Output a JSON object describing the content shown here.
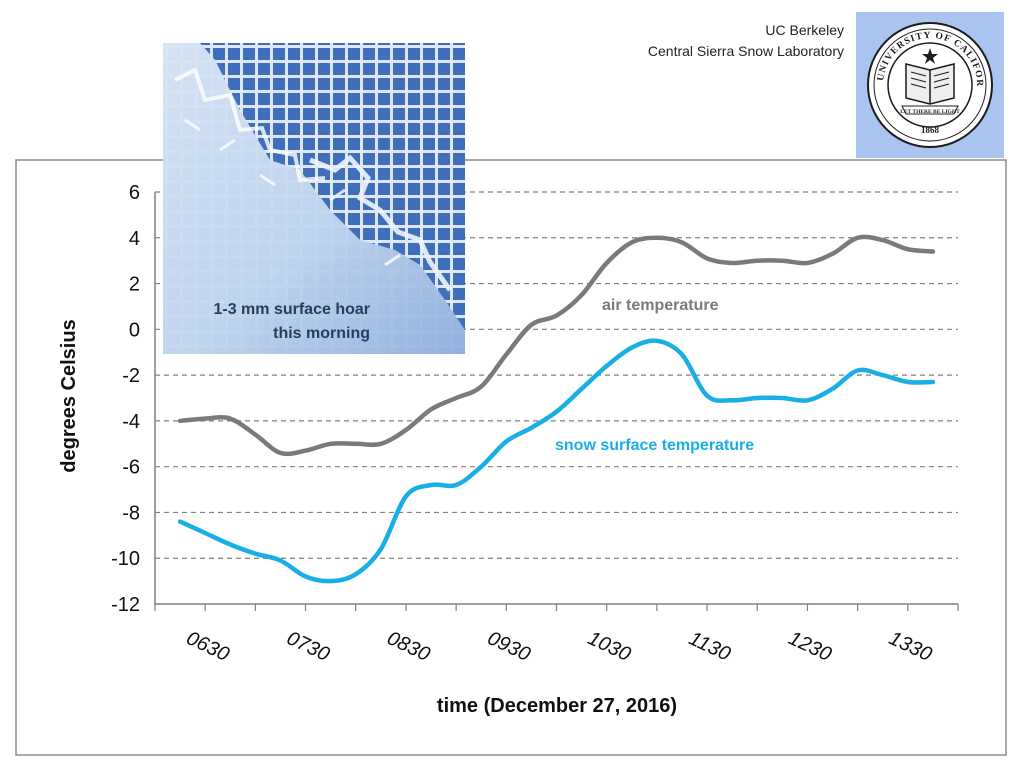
{
  "header": {
    "org_line1": "UC Berkeley",
    "org_line2": "Central Sierra Snow Laboratory",
    "seal_text": "THE UNIVERSITY OF CALIFORNIA",
    "seal_motto": "LET THERE BE LIGHT",
    "seal_year": "1868"
  },
  "photo": {
    "caption_line1": "1-3 mm surface hoar",
    "caption_line2": "this morning"
  },
  "chart_data": {
    "type": "line",
    "title": "",
    "xlabel": "time (December 27, 2016)",
    "ylabel": "degrees Celsius",
    "ylim": [
      -12,
      6
    ],
    "yticks": [
      6,
      4,
      2,
      0,
      -2,
      -4,
      -6,
      -8,
      -10,
      -12
    ],
    "ytick_labels": [
      "6",
      "4",
      "2",
      "0",
      "-2",
      "-4",
      "-6",
      "-8",
      "-10",
      "-12"
    ],
    "xlim": [
      6.0,
      14.0
    ],
    "xticks": [
      "0630",
      "0730",
      "0830",
      "0930",
      "1030",
      "1130",
      "1230",
      "1330"
    ],
    "grid": "horizontal dashed",
    "series": [
      {
        "name": "air temperature",
        "color": "#7a7a7a",
        "x": [
          "06:15",
          "06:30",
          "06:45",
          "07:00",
          "07:15",
          "07:30",
          "07:45",
          "08:00",
          "08:15",
          "08:30",
          "08:45",
          "09:00",
          "09:15",
          "09:30",
          "09:45",
          "10:00",
          "10:15",
          "10:30",
          "10:45",
          "11:00",
          "11:15",
          "11:30",
          "11:45",
          "12:00",
          "12:15",
          "12:30",
          "12:45",
          "13:00",
          "13:15",
          "13:30",
          "13:45"
        ],
        "values": [
          -4.0,
          -3.9,
          -3.9,
          -4.6,
          -5.4,
          -5.3,
          -5.0,
          -5.0,
          -5.0,
          -4.4,
          -3.5,
          -3.0,
          -2.5,
          -1.1,
          0.2,
          0.6,
          1.5,
          2.9,
          3.8,
          4.0,
          3.8,
          3.1,
          2.9,
          3.0,
          3.0,
          2.9,
          3.3,
          4.0,
          3.9,
          3.5,
          3.4
        ],
        "label": "air temperature"
      },
      {
        "name": "snow surface temperature",
        "color": "#1aaee6",
        "x": [
          "06:15",
          "06:30",
          "06:45",
          "07:00",
          "07:15",
          "07:30",
          "07:45",
          "08:00",
          "08:15",
          "08:30",
          "08:45",
          "09:00",
          "09:15",
          "09:30",
          "09:45",
          "10:00",
          "10:15",
          "10:30",
          "10:45",
          "11:00",
          "11:15",
          "11:30",
          "11:45",
          "12:00",
          "12:15",
          "12:30",
          "12:45",
          "13:00",
          "13:15",
          "13:30",
          "13:45"
        ],
        "values": [
          -8.4,
          -8.9,
          -9.4,
          -9.8,
          -10.1,
          -10.8,
          -11.0,
          -10.7,
          -9.6,
          -7.3,
          -6.8,
          -6.8,
          -6.0,
          -4.9,
          -4.3,
          -3.6,
          -2.6,
          -1.6,
          -0.8,
          -0.5,
          -1.1,
          -2.9,
          -3.1,
          -3.0,
          -3.0,
          -3.1,
          -2.6,
          -1.8,
          -2.0,
          -2.3,
          -2.3
        ],
        "label": "snow surface temperature"
      }
    ]
  }
}
